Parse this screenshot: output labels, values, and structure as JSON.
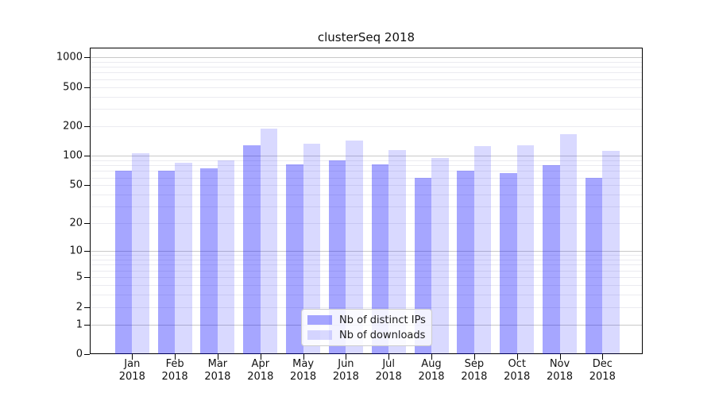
{
  "chart_data": {
    "type": "bar",
    "title": "clusterSeq 2018",
    "scale": "log1p",
    "grid": true,
    "categories": [
      "Jan 2018",
      "Feb 2018",
      "Mar 2018",
      "Apr 2018",
      "May 2018",
      "Jun 2018",
      "Jul 2018",
      "Aug 2018",
      "Sep 2018",
      "Oct 2018",
      "Nov 2018",
      "Dec 2018"
    ],
    "series": [
      {
        "name": "Nb of distinct IPs",
        "color": "rgba(0,0,255,0.35)",
        "values": [
          70,
          70,
          74,
          127,
          81,
          90,
          82,
          60,
          71,
          66,
          80,
          60
        ]
      },
      {
        "name": "Nb of downloads",
        "color": "rgba(0,0,255,0.15)",
        "values": [
          106,
          85,
          90,
          188,
          132,
          142,
          114,
          95,
          125,
          127,
          166,
          112
        ]
      }
    ],
    "yticks": [
      0,
      1,
      2,
      5,
      10,
      20,
      50,
      100,
      200,
      500,
      1000
    ],
    "ylim": [
      0,
      1250
    ],
    "xlabel": "",
    "ylabel": "",
    "legend_position": "lower center",
    "colors": {
      "major_gridline": "#c9c9c9",
      "minor_gridline": "#ebebf0",
      "spine": "#000000",
      "text": "#111111"
    }
  }
}
